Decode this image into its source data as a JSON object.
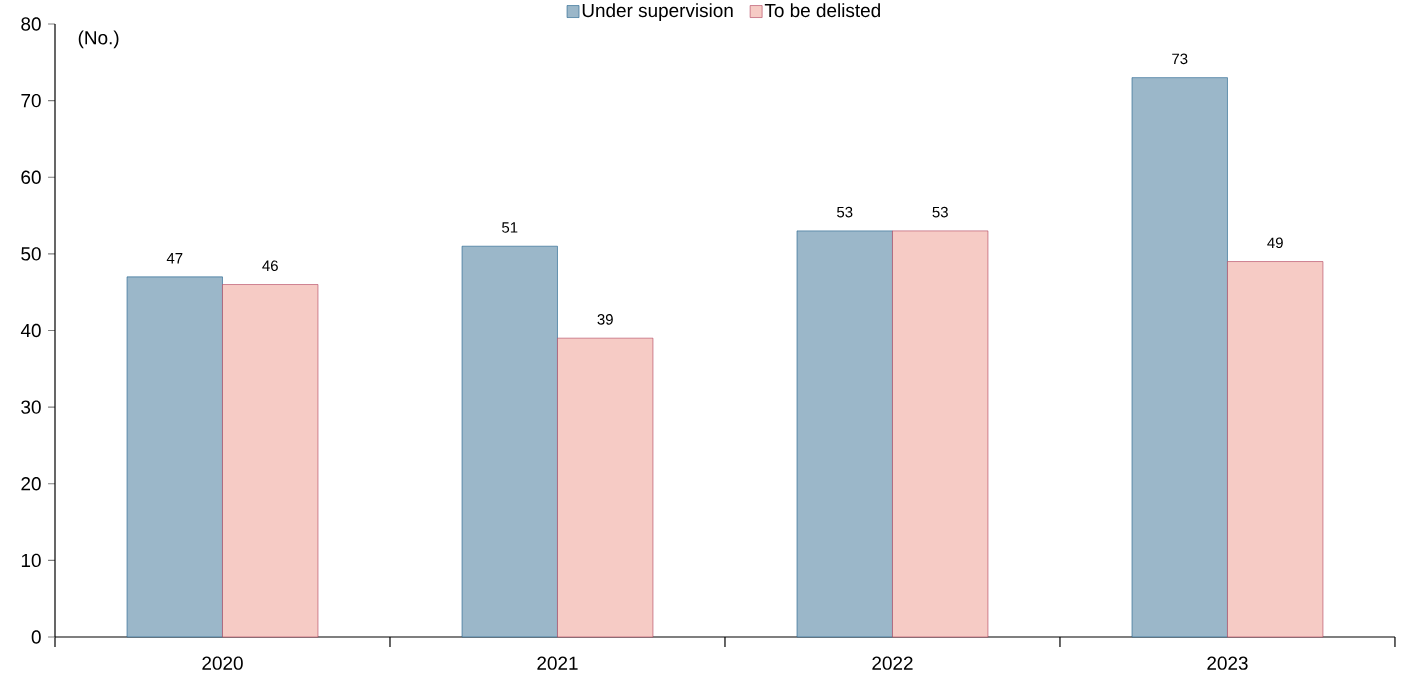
{
  "chart_data": {
    "type": "bar",
    "ylabel": "(No.)",
    "categories": [
      "2020",
      "2021",
      "2022",
      "2023"
    ],
    "series": [
      {
        "name": "Under supervision",
        "color": "#9bb7c9",
        "values": [
          47,
          51,
          53,
          73
        ]
      },
      {
        "name": "To be delisted",
        "color": "#f6cbc5",
        "values": [
          46,
          39,
          53,
          49
        ]
      }
    ],
    "ylim": [
      0,
      80
    ],
    "yticks": [
      0,
      10,
      20,
      30,
      40,
      50,
      60,
      70,
      80
    ],
    "data_labels": true,
    "legend": "top",
    "grid": false
  }
}
